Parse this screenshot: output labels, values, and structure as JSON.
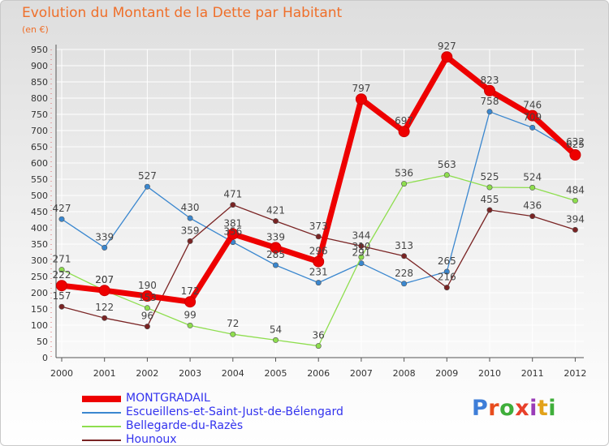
{
  "title": "Evolution du Montant de la Dette par Habitant",
  "unit_label": "(en €)",
  "logo": {
    "text": "Proxiti",
    "letter_colors": [
      "#3e7ed8",
      "#e84c1d",
      "#3fae3a",
      "#e8402a",
      "#9a3cb8",
      "#e2a21a",
      "#3fae3a"
    ]
  },
  "chart_data": {
    "type": "line",
    "title": "Evolution du Montant de la Dette par Habitant",
    "ylabel": "(en €)",
    "xlabel": "",
    "x": [
      "2000",
      "2001",
      "2002",
      "2003",
      "2004",
      "2005",
      "2006",
      "2007",
      "2008",
      "2009",
      "2010",
      "2011",
      "2012"
    ],
    "y_ticks": [
      0,
      50,
      100,
      150,
      200,
      250,
      300,
      350,
      400,
      450,
      500,
      550,
      600,
      650,
      700,
      750,
      800,
      850,
      900,
      950
    ],
    "ylim": [
      0,
      950
    ],
    "grid": true,
    "legend_position": "bottom-left",
    "series": [
      {
        "name": "MONTGRADAIL",
        "color": "#ee0000",
        "emphasis": true,
        "values": [
          222,
          207,
          190,
          172,
          381,
          339,
          296,
          797,
          697,
          927,
          823,
          746,
          625
        ]
      },
      {
        "name": "Escueillens-et-Saint-Just-de-Bélengard",
        "color": "#3a87cf",
        "emphasis": false,
        "values": [
          427,
          339,
          527,
          430,
          356,
          285,
          231,
          291,
          228,
          265,
          758,
          709,
          632
        ]
      },
      {
        "name": "Bellegarde-du-Razès",
        "color": "#8ede4e",
        "emphasis": false,
        "values": [
          271,
          207,
          153,
          99,
          72,
          54,
          36,
          310,
          536,
          563,
          525,
          524,
          484
        ]
      },
      {
        "name": "Hounoux",
        "color": "#7a2424",
        "emphasis": false,
        "values": [
          157,
          122,
          96,
          359,
          471,
          421,
          373,
          344,
          313,
          216,
          455,
          436,
          394
        ]
      }
    ]
  }
}
